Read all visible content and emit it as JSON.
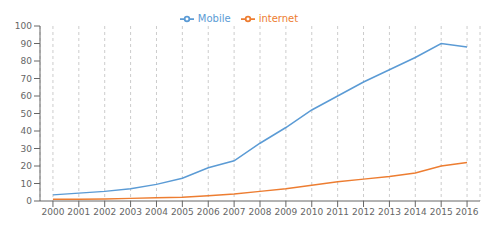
{
  "chart_data": {
    "type": "line",
    "x": [
      2000,
      2001,
      2002,
      2003,
      2004,
      2005,
      2006,
      2007,
      2008,
      2009,
      2010,
      2011,
      2012,
      2013,
      2014,
      2015,
      2016
    ],
    "series": [
      {
        "name": "Mobile",
        "color": "#5b9bd5",
        "values": [
          3.5,
          4.5,
          5.5,
          7.0,
          9.5,
          13.0,
          19.0,
          23.0,
          33.0,
          42.0,
          52.0,
          60.0,
          68.0,
          75.0,
          82.0,
          90.0,
          88.0
        ]
      },
      {
        "name": "internet",
        "color": "#ed7d31",
        "values": [
          1.0,
          1.0,
          1.2,
          1.5,
          1.8,
          2.2,
          3.0,
          4.0,
          5.5,
          7.0,
          9.0,
          11.0,
          12.5,
          14.0,
          16.0,
          20.0,
          22.0
        ]
      }
    ],
    "xlim": [
      1999.5,
      2016.5
    ],
    "xticks": [
      2000,
      2001,
      2002,
      2003,
      2004,
      2005,
      2006,
      2007,
      2008,
      2009,
      2010,
      2011,
      2012,
      2013,
      2014,
      2015,
      2016
    ],
    "ylim": [
      0,
      100
    ],
    "yticks": [
      0,
      10,
      20,
      30,
      40,
      50,
      60,
      70,
      80,
      90,
      100
    ],
    "grid": "x",
    "legend": "top"
  }
}
